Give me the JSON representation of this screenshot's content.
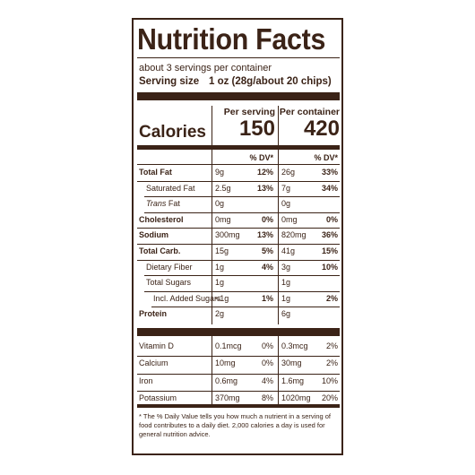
{
  "title": "Nutrition Facts",
  "servings": "about 3 servings per container",
  "serving_size_label": "Serving size",
  "serving_size_value": "1 oz (28g/about 20 chips)",
  "calories_label": "Calories",
  "per_serving_label": "Per serving",
  "per_container_label": "Per container",
  "calories_serving": "150",
  "calories_container": "420",
  "dv_header": "% DV*",
  "rows": [
    {
      "name": "Total Fat",
      "s_amt": "9g",
      "s_dv": "12%",
      "c_amt": "26g",
      "c_dv": "33%"
    },
    {
      "name": "Saturated Fat",
      "s_amt": "2.5g",
      "s_dv": "13%",
      "c_amt": "7g",
      "c_dv": "34%"
    },
    {
      "name": "Trans",
      "name_suffix": " Fat",
      "s_amt": "0g",
      "s_dv": "",
      "c_amt": "0g",
      "c_dv": ""
    },
    {
      "name": "Cholesterol",
      "s_amt": "0mg",
      "s_dv": "0%",
      "c_amt": "0mg",
      "c_dv": "0%"
    },
    {
      "name": "Sodium",
      "s_amt": "300mg",
      "s_dv": "13%",
      "c_amt": "820mg",
      "c_dv": "36%"
    },
    {
      "name": "Total Carb.",
      "s_amt": "15g",
      "s_dv": "5%",
      "c_amt": "41g",
      "c_dv": "15%"
    },
    {
      "name": "Dietary Fiber",
      "s_amt": "1g",
      "s_dv": "4%",
      "c_amt": "3g",
      "c_dv": "10%"
    },
    {
      "name": "Total Sugars",
      "s_amt": "1g",
      "s_dv": "",
      "c_amt": "1g",
      "c_dv": ""
    },
    {
      "name": "Incl. Added Sugars",
      "s_amt": "<1g",
      "s_dv": "1%",
      "c_amt": "1g",
      "c_dv": "2%"
    },
    {
      "name": "Protein",
      "s_amt": "2g",
      "s_dv": "",
      "c_amt": "6g",
      "c_dv": ""
    }
  ],
  "vitamins": [
    {
      "name": "Vitamin D",
      "s_amt": "0.1mcg",
      "s_dv": "0%",
      "c_amt": "0.3mcg",
      "c_dv": "2%"
    },
    {
      "name": "Calcium",
      "s_amt": "10mg",
      "s_dv": "0%",
      "c_amt": "30mg",
      "c_dv": "2%"
    },
    {
      "name": "Iron",
      "s_amt": "0.6mg",
      "s_dv": "4%",
      "c_amt": "1.6mg",
      "c_dv": "10%"
    },
    {
      "name": "Potassium",
      "s_amt": "370mg",
      "s_dv": "8%",
      "c_amt": "1020mg",
      "c_dv": "20%"
    }
  ],
  "footnote": "* The % Daily Value tells you how much a nutrient in a serving of food contributes to a daily diet. 2,000 calories a day is used for general nutrition advice."
}
